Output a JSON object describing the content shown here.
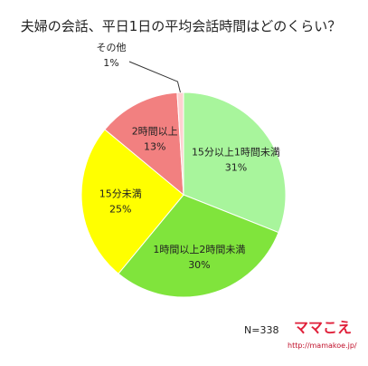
{
  "chart_data": {
    "type": "pie",
    "title": "夫婦の会話、平日1日の平均会話時間はどのくらい？",
    "categories": [
      "15分以上1時間未満",
      "1時間以上2時間未満",
      "15分未満",
      "2時間以上",
      "その他"
    ],
    "values": [
      31,
      30,
      25,
      13,
      1
    ],
    "value_labels": [
      "31%",
      "30%",
      "25%",
      "13%",
      "1%"
    ],
    "colors": [
      "#a8f59c",
      "#80e43c",
      "#ffff00",
      "#f28080",
      "#ffd0d0"
    ],
    "note": "N=338",
    "logo": "ママこえ",
    "url": "http://mamakoe.jp/"
  }
}
